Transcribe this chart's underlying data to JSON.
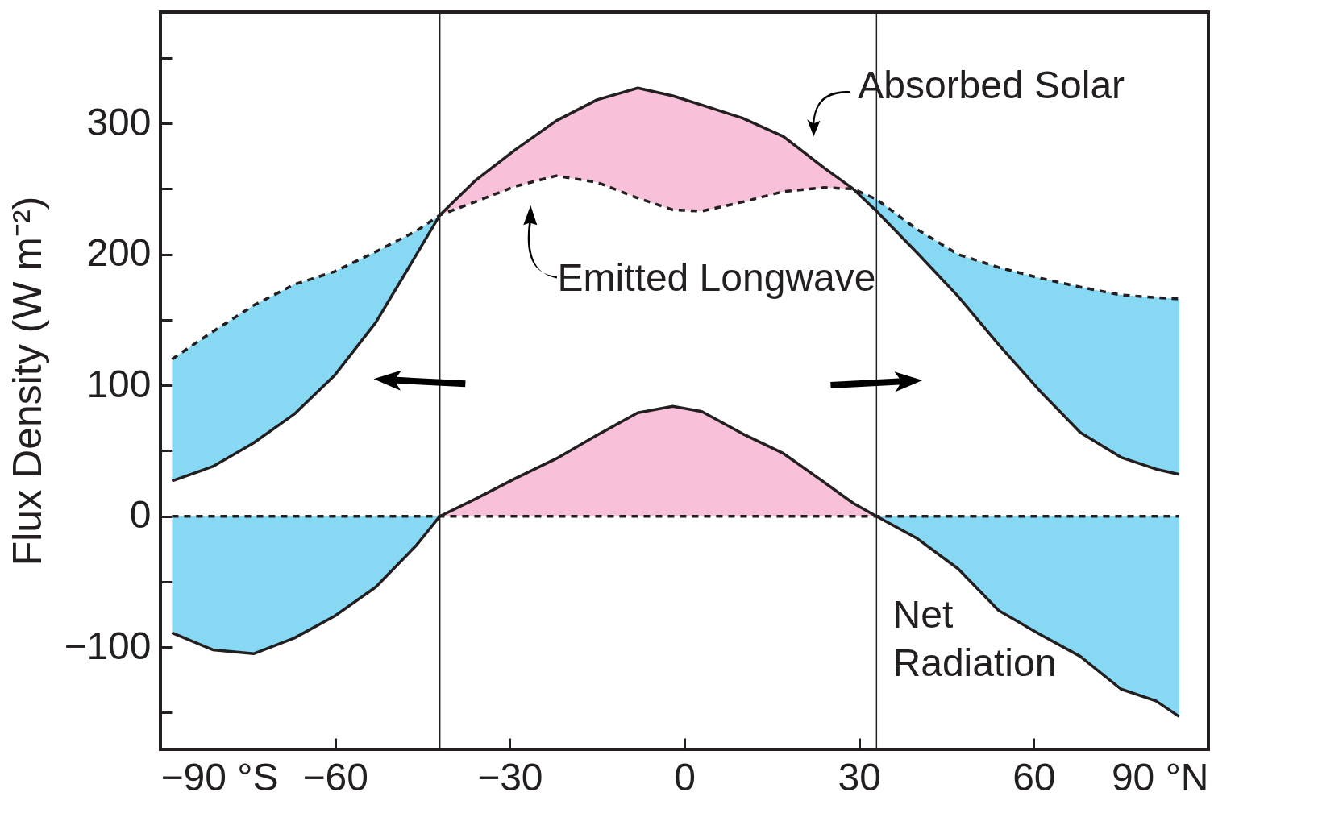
{
  "chart_data": {
    "type": "line",
    "ylabel": "Flux Density (W m⁻²)",
    "x": [
      -88,
      -81,
      -74,
      -67,
      -60,
      -53,
      -46,
      -42,
      -36,
      -29,
      -22,
      -15,
      -8,
      -2,
      3,
      10,
      17,
      24,
      29,
      33,
      40,
      47,
      54,
      61,
      68,
      75,
      81,
      85
    ],
    "series": [
      {
        "type": "area",
        "color": "#87d8f3",
        "x": [
          -88,
          -81,
          -74,
          -67,
          -60,
          -53,
          -46,
          -42
        ],
        "values": [
          -89,
          -102,
          -105,
          -93,
          -76,
          -54,
          -22,
          0
        ]
      },
      {
        "type": "area",
        "color": "#f9c0da",
        "x": [
          -42,
          -36,
          -29,
          -22,
          -15,
          -8,
          -2,
          3,
          10,
          17,
          24,
          29,
          33
        ],
        "values": [
          0,
          13,
          29,
          44,
          62,
          79,
          84,
          80,
          63,
          48,
          26,
          10,
          0
        ]
      },
      {
        "type": "area",
        "color": "#87d8f3",
        "x": [
          33,
          40,
          47,
          54,
          61,
          68,
          75,
          81,
          85
        ],
        "values": [
          0,
          -17,
          -40,
          -72,
          -90,
          -107,
          -132,
          -141,
          -153
        ]
      },
      {
        "color": "#231f20",
        "line_style": "solid",
        "values": [
          27,
          38,
          56,
          78,
          108,
          148,
          200,
          230,
          256,
          280,
          302,
          318,
          327,
          321,
          314,
          304,
          290,
          266,
          250,
          233,
          201,
          168,
          131,
          96,
          64,
          45,
          36,
          32
        ],
        "lower": [
          null,
          null,
          null,
          null,
          null,
          null,
          null,
          230,
          240,
          252,
          260,
          255,
          243,
          234,
          233,
          240,
          248,
          251,
          250,
          null,
          null,
          null,
          null,
          null,
          null,
          null,
          null,
          null
        ],
        "upper": [
          null,
          null,
          null,
          null,
          null,
          null,
          null,
          230,
          256,
          280,
          302,
          318,
          327,
          321,
          314,
          304,
          290,
          266,
          250,
          null,
          null,
          null,
          null,
          null,
          null,
          null,
          null,
          null
        ],
        "colors": [
          "#f9c0da",
          "#f9c0da",
          "#f9c0da",
          "#f9c0da",
          "#f9c0da",
          "#f9c0da",
          "#f9c0da",
          "#f9c0da",
          "#f9c0da",
          "#f9c0da",
          "#f9c0da",
          "#f9c0da",
          "#f9c0da",
          "#f9c0da",
          "#f9c0da",
          "#f9c0da",
          "#f9c0da",
          "#f9c0da",
          "#f9c0da",
          "#f9c0da",
          "#f9c0da",
          "#f9c0da",
          "#f9c0da",
          "#f9c0da",
          "#f9c0da",
          "#f9c0da",
          "#f9c0da",
          "#f9c0da"
        ]
      },
      {
        "color": "#231f20",
        "line_style": "dashed",
        "values": [
          120,
          141,
          161,
          177,
          187,
          202,
          218,
          230,
          240,
          252,
          260,
          255,
          243,
          234,
          233,
          240,
          248,
          251,
          250,
          242,
          219,
          200,
          190,
          182,
          175,
          169,
          167,
          166
        ],
        "lower": [
          27,
          38,
          56,
          78,
          108,
          148,
          200,
          230,
          null,
          null,
          null,
          null,
          null,
          null,
          null,
          null,
          null,
          null,
          250,
          233,
          201,
          168,
          131,
          96,
          64,
          45,
          36,
          32
        ],
        "upper": [
          120,
          141,
          161,
          177,
          187,
          202,
          218,
          230,
          null,
          null,
          null,
          null,
          null,
          null,
          null,
          null,
          null,
          null,
          250,
          242,
          219,
          200,
          190,
          182,
          175,
          169,
          167,
          166
        ],
        "colors": [
          "#87d8f3",
          "#87d8f3",
          "#87d8f3",
          "#87d8f3",
          "#87d8f3",
          "#87d8f3",
          "#87d8f3",
          "#87d8f3",
          "#87d8f3",
          "#87d8f3",
          "#87d8f3",
          "#87d8f3",
          "#87d8f3",
          "#87d8f3",
          "#87d8f3",
          "#87d8f3",
          "#87d8f3",
          "#87d8f3",
          "#87d8f3",
          "#87d8f3",
          "#87d8f3",
          "#87d8f3",
          "#87d8f3",
          "#87d8f3",
          "#87d8f3",
          "#87d8f3",
          "#87d8f3",
          "#87d8f3"
        ]
      },
      {
        "color": "#231f20",
        "line_style": "solid",
        "values": [
          -89,
          -102,
          -105,
          -93,
          -76,
          -54,
          -22,
          0,
          13,
          29,
          44,
          62,
          79,
          84,
          80,
          63,
          48,
          26,
          10,
          0,
          -17,
          -40,
          -72,
          -90,
          -107,
          -132,
          -141,
          -153
        ]
      },
      {
        "color": "#231f20",
        "line_style": "dashed",
        "x": [
          -88,
          85
        ],
        "values": [
          0,
          0
        ]
      }
    ],
    "xlim": [
      -90,
      90
    ],
    "xticks": [
      {
        "value": -90,
        "label": "−90 °S"
      },
      -60,
      -30,
      0,
      30,
      60,
      {
        "value": 90,
        "label": "90 °N"
      }
    ],
    "ylim": [
      -178,
      385
    ],
    "yticks": [
      {
        "value": -150,
        "label": null
      },
      -100,
      {
        "value": -50,
        "label": null
      },
      0,
      {
        "value": 50,
        "label": null
      },
      100,
      {
        "value": 150,
        "label": null
      },
      200,
      {
        "value": 250,
        "label": null
      },
      300,
      {
        "value": 350,
        "label": null
      }
    ],
    "ref_lines": [
      {
        "axis": "x",
        "value": -42,
        "color": "#231f20"
      },
      {
        "axis": "x",
        "value": 33,
        "color": "#231f20"
      }
    ],
    "annotations": [
      "Absorbed Solar",
      "Emitted Longwave",
      "Net Radiation"
    ],
    "grid": false,
    "marker": "none"
  }
}
